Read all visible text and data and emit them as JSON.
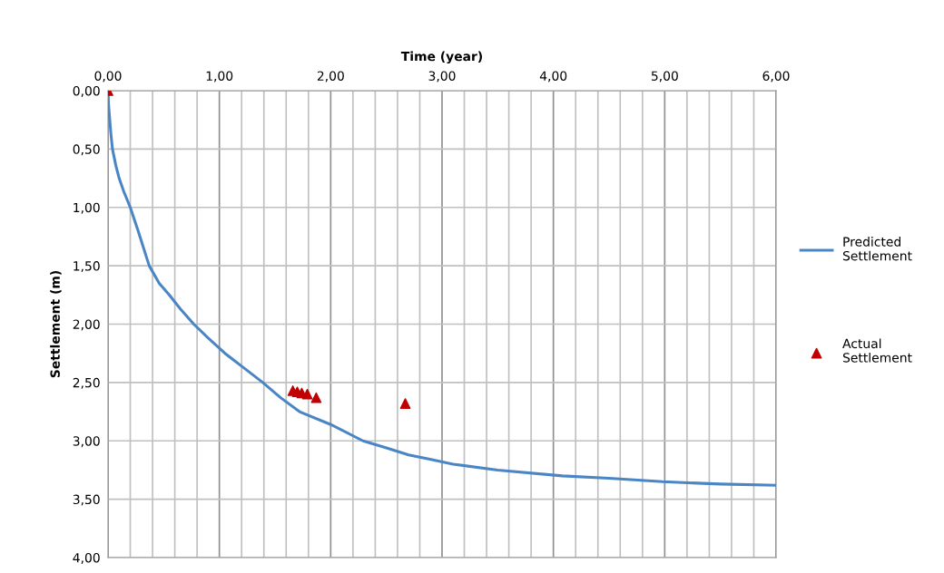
{
  "chart_data": {
    "type": "line",
    "xlabel": "Time (year)",
    "ylabel": "Settlement (m)",
    "xlim": [
      0,
      6
    ],
    "ylim": [
      4,
      0
    ],
    "xticks": [
      {
        "value": 0,
        "label": "0,00"
      },
      {
        "value": 0.2,
        "label": null
      },
      {
        "value": 0.4,
        "label": null
      },
      {
        "value": 0.6,
        "label": null
      },
      {
        "value": 0.8,
        "label": null
      },
      {
        "value": 1,
        "label": "1,00"
      },
      {
        "value": 1.2,
        "label": null
      },
      {
        "value": 1.4,
        "label": null
      },
      {
        "value": 1.6,
        "label": null
      },
      {
        "value": 1.8,
        "label": null
      },
      {
        "value": 2,
        "label": "2,00"
      },
      {
        "value": 2.2,
        "label": null
      },
      {
        "value": 2.4,
        "label": null
      },
      {
        "value": 2.6,
        "label": null
      },
      {
        "value": 2.8,
        "label": null
      },
      {
        "value": 3,
        "label": "3,00"
      },
      {
        "value": 3.2,
        "label": null
      },
      {
        "value": 3.4,
        "label": null
      },
      {
        "value": 3.6,
        "label": null
      },
      {
        "value": 3.8,
        "label": null
      },
      {
        "value": 4,
        "label": "4,00"
      },
      {
        "value": 4.2,
        "label": null
      },
      {
        "value": 4.4,
        "label": null
      },
      {
        "value": 4.6,
        "label": null
      },
      {
        "value": 4.8,
        "label": null
      },
      {
        "value": 5,
        "label": "5,00"
      },
      {
        "value": 5.2,
        "label": null
      },
      {
        "value": 5.4,
        "label": null
      },
      {
        "value": 5.6,
        "label": null
      },
      {
        "value": 5.8,
        "label": null
      },
      {
        "value": 6,
        "label": "6,00"
      }
    ],
    "yticks": [
      {
        "value": 0,
        "label": "0,00"
      },
      {
        "value": 0.5,
        "label": "0,50"
      },
      {
        "value": 1,
        "label": "1,00"
      },
      {
        "value": 1.5,
        "label": "1,50"
      },
      {
        "value": 2,
        "label": "2,00"
      },
      {
        "value": 2.5,
        "label": "2,50"
      },
      {
        "value": 3,
        "label": "3,00"
      },
      {
        "value": 3.5,
        "label": "3,50"
      },
      {
        "value": 4,
        "label": "4,00"
      }
    ],
    "grid": true,
    "legend": "right",
    "series": [
      {
        "name": "Predicted Settlement",
        "color": "#4a86c5",
        "marker": "none",
        "line_style": "solid",
        "x": [
          0,
          0.005,
          0.014,
          0.025,
          0.04,
          0.07,
          0.1,
          0.14,
          0.2,
          0.27,
          0.37,
          0.46,
          0.55,
          0.65,
          0.77,
          0.9,
          1.05,
          1.2,
          1.39,
          1.55,
          1.72,
          2.0,
          2.29,
          2.5,
          2.7,
          2.9,
          3.1,
          3.5,
          4.08,
          4.5,
          4.98,
          5.5,
          6
        ],
        "values": [
          0,
          0.12,
          0.23,
          0.36,
          0.5,
          0.64,
          0.75,
          0.86,
          1,
          1.2,
          1.5,
          1.65,
          1.75,
          1.87,
          2,
          2.12,
          2.25,
          2.36,
          2.5,
          2.63,
          2.75,
          2.86,
          3,
          3.06,
          3.12,
          3.16,
          3.2,
          3.25,
          3.3,
          3.32,
          3.35,
          3.37,
          3.38
        ]
      },
      {
        "name": "Actual Settlement",
        "type": "scatter",
        "color": "#c00000",
        "marker": "triangle",
        "x": [
          0,
          1.66,
          1.7,
          1.74,
          1.79,
          1.87,
          2.67
        ],
        "values": [
          0,
          2.57,
          2.58,
          2.59,
          2.6,
          2.63,
          2.68
        ]
      }
    ]
  }
}
